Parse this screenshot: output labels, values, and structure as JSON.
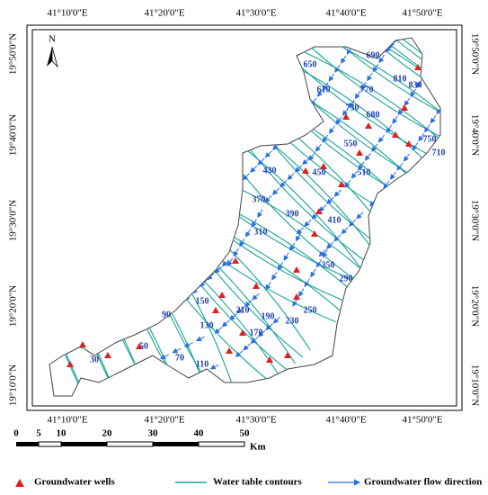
{
  "frame": {
    "top": [
      "41°10'0\"E",
      "41°20'0\"E",
      "41°30'0\"E",
      "41°40'0\"E",
      "41°50'0\"E"
    ],
    "bottom": [
      "41°10'0\"E",
      "41°20'0\"E",
      "41°30'0\"E",
      "41°40'0\"E",
      "41°50'0\"E"
    ],
    "left": [
      "19°50'0\"N",
      "19°40'0\"N",
      "19°30'0\"N",
      "19°20'0\"N",
      "19°10'0\"N"
    ],
    "right": [
      "19°50'0\"N",
      "19°40'0\"N",
      "19°30'0\"N",
      "19°20'0\"N",
      "19°10'0\"N"
    ]
  },
  "north": "N",
  "contour_labels": [
    "650",
    "610",
    "690",
    "810",
    "830",
    "770",
    "730",
    "680",
    "750",
    "710",
    "550",
    "510",
    "450",
    "430",
    "370",
    "390",
    "410",
    "310",
    "350",
    "290",
    "250",
    "230",
    "210",
    "190",
    "170",
    "150",
    "130",
    "110",
    "90",
    "70",
    "50",
    "30"
  ],
  "scale": {
    "labels": [
      "0",
      "5",
      "10",
      "20",
      "30",
      "40",
      "50"
    ],
    "unit": "Km"
  },
  "legend": [
    "Groundwater wells",
    "Water table contours",
    "Groundwater flow direction"
  ]
}
